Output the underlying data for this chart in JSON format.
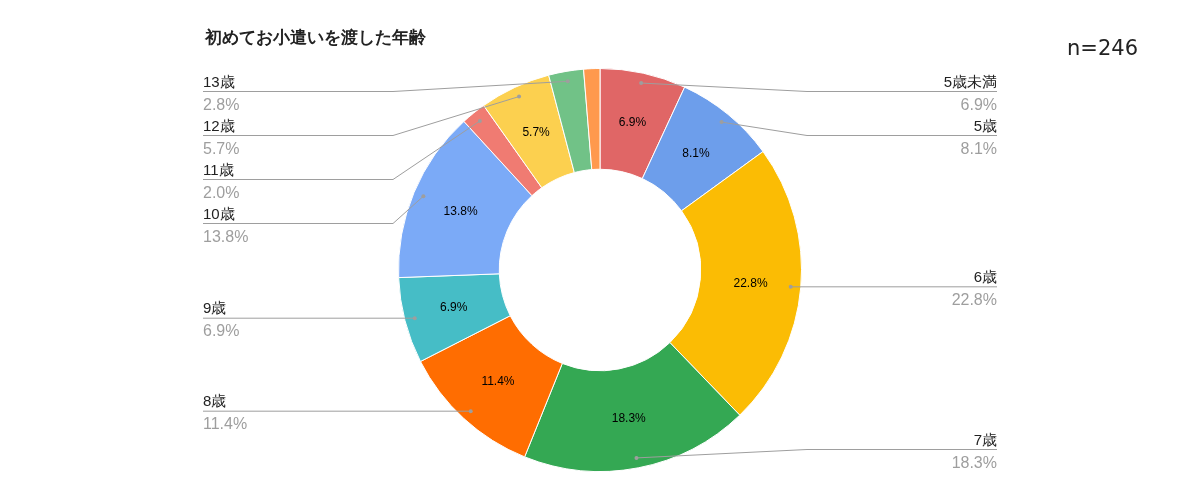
{
  "chart_data": {
    "type": "donut",
    "title": "初めてお小遣いを渡した年齢",
    "categories": [
      "5歳未満",
      "5歳",
      "6歳",
      "7歳",
      "8歳",
      "9歳",
      "10歳",
      "11歳",
      "12歳",
      "13歳",
      null
    ],
    "values": [
      6.9,
      8.1,
      22.8,
      18.3,
      11.4,
      6.9,
      13.8,
      2.0,
      5.7,
      2.8,
      1.3
    ],
    "colors": [
      "#e06666",
      "#6d9eeb",
      "#fbbc04",
      "#34a853",
      "#ff6d01",
      "#46bdc6",
      "#7baaf7",
      "#f07b72",
      "#fcd04f",
      "#71c287",
      "#ff994d"
    ],
    "value_labels": [
      "6.9%",
      "8.1%",
      "22.8%",
      "18.3%",
      "11.4%",
      "6.9%",
      "13.8%",
      "2.0%",
      "5.7%",
      "2.8%",
      null
    ],
    "annotations": [
      "n=246"
    ]
  }
}
